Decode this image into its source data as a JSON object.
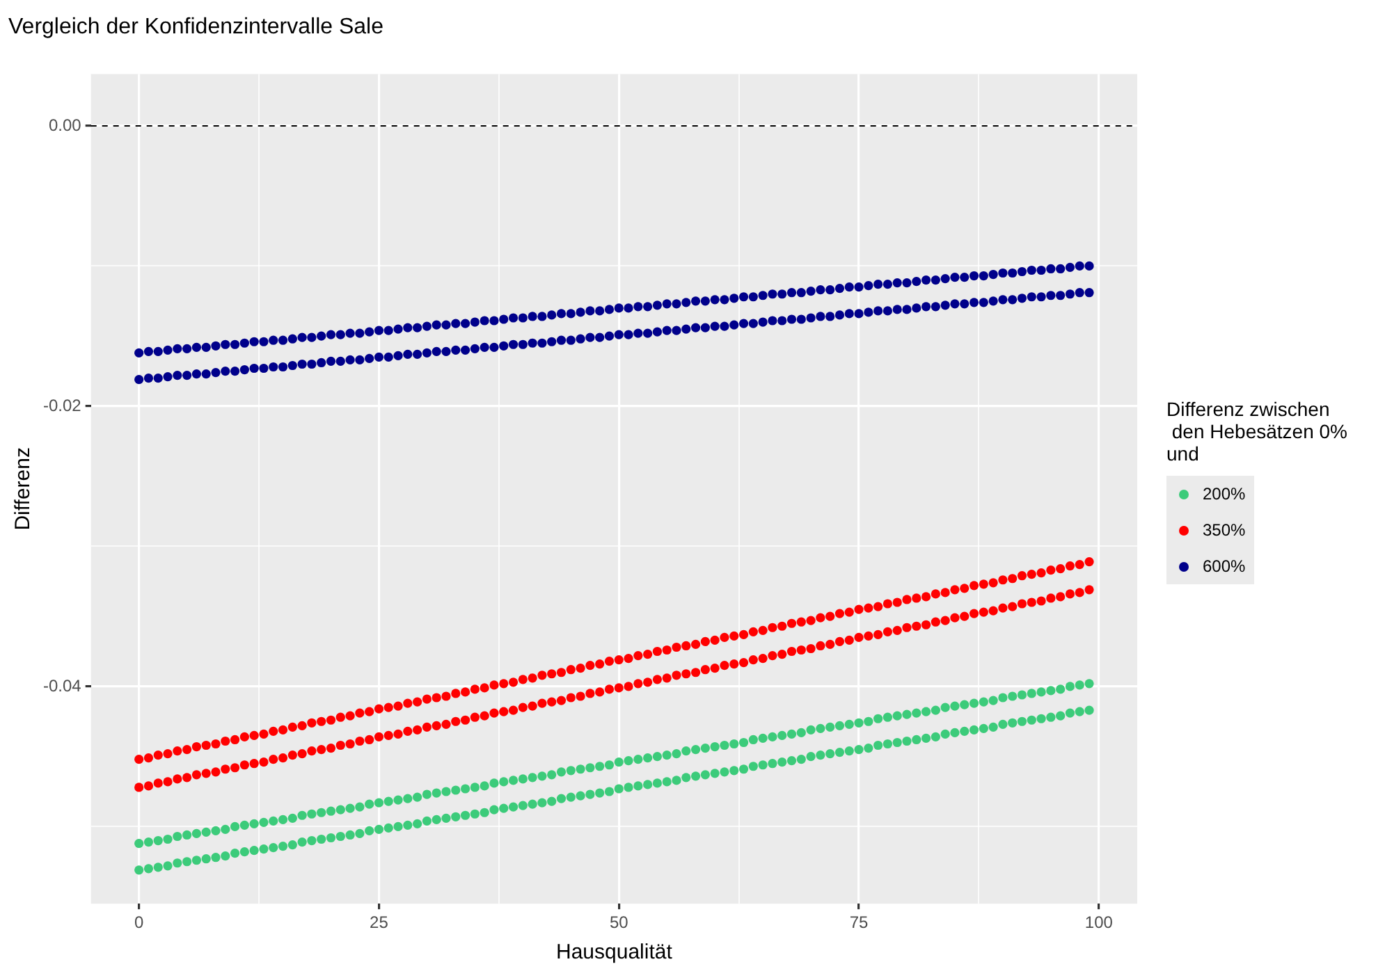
{
  "chart_data": {
    "type": "scatter",
    "title": "Vergleich der Konfidenzintervalle Sale",
    "xlabel": "Hausqualität",
    "ylabel": "Differenz",
    "legend_title": "Differenz zwischen\n den Hebesätzen 0%\nund",
    "legend": "right",
    "grid": true,
    "marker": "circle",
    "xlim": [
      -5,
      104
    ],
    "ylim": [
      -0.0555,
      0.0037
    ],
    "xticks": [
      0,
      {
        "value": 12.5,
        "label": null
      },
      25,
      {
        "value": 37.5,
        "label": null
      },
      50,
      {
        "value": 62.5,
        "label": null
      },
      75,
      {
        "value": 87.5,
        "label": null
      },
      100
    ],
    "yticks": [
      {
        "value": -0.05,
        "label": null
      },
      {
        "value": -0.04,
        "label": "-0.04"
      },
      {
        "value": -0.03,
        "label": null
      },
      {
        "value": -0.02,
        "label": "-0.02"
      },
      {
        "value": -0.01,
        "label": null
      },
      {
        "value": 0,
        "label": "0.00"
      }
    ],
    "ref_lines": [
      {
        "axis": "y",
        "value": 0,
        "color": "#000000",
        "line_style": "dashed"
      }
    ],
    "x": [
      0,
      1,
      2,
      3,
      4,
      5,
      6,
      7,
      8,
      9,
      10,
      11,
      12,
      13,
      14,
      15,
      16,
      17,
      18,
      19,
      20,
      21,
      22,
      23,
      24,
      25,
      26,
      27,
      28,
      29,
      30,
      31,
      32,
      33,
      34,
      35,
      36,
      37,
      38,
      39,
      40,
      41,
      42,
      43,
      44,
      45,
      46,
      47,
      48,
      49,
      50,
      51,
      52,
      53,
      54,
      55,
      56,
      57,
      58,
      59,
      60,
      61,
      62,
      63,
      64,
      65,
      66,
      67,
      68,
      69,
      70,
      71,
      72,
      73,
      74,
      75,
      76,
      77,
      78,
      79,
      80,
      81,
      82,
      83,
      84,
      85,
      86,
      87,
      88,
      89,
      90,
      91,
      92,
      93,
      94,
      95,
      96,
      97,
      98,
      99,
      0,
      1,
      2,
      3,
      4,
      5,
      6,
      7,
      8,
      9,
      10,
      11,
      12,
      13,
      14,
      15,
      16,
      17,
      18,
      19,
      20,
      21,
      22,
      23,
      24,
      25,
      26,
      27,
      28,
      29,
      30,
      31,
      32,
      33,
      34,
      35,
      36,
      37,
      38,
      39,
      40,
      41,
      42,
      43,
      44,
      45,
      46,
      47,
      48,
      49,
      50,
      51,
      52,
      53,
      54,
      55,
      56,
      57,
      58,
      59,
      60,
      61,
      62,
      63,
      64,
      65,
      66,
      67,
      68,
      69,
      70,
      71,
      72,
      73,
      74,
      75,
      76,
      77,
      78,
      79,
      80,
      81,
      82,
      83,
      84,
      85,
      86,
      87,
      88,
      89,
      90,
      91,
      92,
      93,
      94,
      95,
      96,
      97,
      98,
      99
    ],
    "series": [
      {
        "name": "200%",
        "color": "#3ccb7a",
        "values": [
          -0.0512,
          -0.0511,
          -0.051,
          -0.0509,
          -0.0507,
          -0.0506,
          -0.0505,
          -0.0504,
          -0.0503,
          -0.0502,
          -0.05,
          -0.0499,
          -0.0498,
          -0.0497,
          -0.0496,
          -0.0495,
          -0.0494,
          -0.0492,
          -0.0491,
          -0.049,
          -0.0489,
          -0.0488,
          -0.0487,
          -0.0486,
          -0.0484,
          -0.0483,
          -0.0482,
          -0.0481,
          -0.048,
          -0.0479,
          -0.0477,
          -0.0476,
          -0.0475,
          -0.0474,
          -0.0473,
          -0.0472,
          -0.0471,
          -0.0469,
          -0.0468,
          -0.0467,
          -0.0466,
          -0.0465,
          -0.0464,
          -0.0463,
          -0.0461,
          -0.046,
          -0.0459,
          -0.0458,
          -0.0457,
          -0.0456,
          -0.0454,
          -0.0453,
          -0.0452,
          -0.0451,
          -0.045,
          -0.0449,
          -0.0448,
          -0.0446,
          -0.0445,
          -0.0444,
          -0.0443,
          -0.0442,
          -0.0441,
          -0.044,
          -0.0438,
          -0.0437,
          -0.0436,
          -0.0435,
          -0.0434,
          -0.0433,
          -0.0431,
          -0.043,
          -0.0429,
          -0.0428,
          -0.0427,
          -0.0426,
          -0.0425,
          -0.0423,
          -0.0422,
          -0.0421,
          -0.042,
          -0.0419,
          -0.0418,
          -0.0417,
          -0.0415,
          -0.0414,
          -0.0413,
          -0.0412,
          -0.0411,
          -0.041,
          -0.0408,
          -0.0407,
          -0.0406,
          -0.0405,
          -0.0404,
          -0.0403,
          -0.0402,
          -0.04,
          -0.0399,
          -0.0398,
          -0.0531,
          -0.053,
          -0.0529,
          -0.0528,
          -0.0526,
          -0.0525,
          -0.0524,
          -0.0523,
          -0.0522,
          -0.0521,
          -0.0519,
          -0.0518,
          -0.0517,
          -0.0516,
          -0.0515,
          -0.0514,
          -0.0513,
          -0.0511,
          -0.051,
          -0.0509,
          -0.0508,
          -0.0507,
          -0.0506,
          -0.0505,
          -0.0503,
          -0.0502,
          -0.0501,
          -0.05,
          -0.0499,
          -0.0498,
          -0.0496,
          -0.0495,
          -0.0494,
          -0.0493,
          -0.0492,
          -0.0491,
          -0.049,
          -0.0488,
          -0.0487,
          -0.0486,
          -0.0485,
          -0.0484,
          -0.0483,
          -0.0482,
          -0.048,
          -0.0479,
          -0.0478,
          -0.0477,
          -0.0476,
          -0.0475,
          -0.0473,
          -0.0472,
          -0.0471,
          -0.047,
          -0.0469,
          -0.0468,
          -0.0467,
          -0.0465,
          -0.0464,
          -0.0463,
          -0.0462,
          -0.0461,
          -0.046,
          -0.0459,
          -0.0457,
          -0.0456,
          -0.0455,
          -0.0454,
          -0.0453,
          -0.0452,
          -0.045,
          -0.0449,
          -0.0448,
          -0.0447,
          -0.0446,
          -0.0445,
          -0.0444,
          -0.0442,
          -0.0441,
          -0.044,
          -0.0439,
          -0.0438,
          -0.0437,
          -0.0436,
          -0.0434,
          -0.0433,
          -0.0432,
          -0.0431,
          -0.043,
          -0.0429,
          -0.0427,
          -0.0426,
          -0.0425,
          -0.0424,
          -0.0423,
          -0.0422,
          -0.0421,
          -0.0419,
          -0.0418,
          -0.0417
        ]
      },
      {
        "name": "350%",
        "color": "#ff0000",
        "values": [
          -0.0452,
          -0.0451,
          -0.0449,
          -0.0448,
          -0.0446,
          -0.0445,
          -0.0443,
          -0.0442,
          -0.0441,
          -0.0439,
          -0.0438,
          -0.0436,
          -0.0435,
          -0.0434,
          -0.0432,
          -0.0431,
          -0.0429,
          -0.0428,
          -0.0426,
          -0.0425,
          -0.0424,
          -0.0422,
          -0.0421,
          -0.0419,
          -0.0418,
          -0.0416,
          -0.0415,
          -0.0414,
          -0.0412,
          -0.0411,
          -0.0409,
          -0.0408,
          -0.0407,
          -0.0405,
          -0.0404,
          -0.0402,
          -0.0401,
          -0.0399,
          -0.0398,
          -0.0397,
          -0.0395,
          -0.0394,
          -0.0392,
          -0.0391,
          -0.039,
          -0.0388,
          -0.0387,
          -0.0385,
          -0.0384,
          -0.0382,
          -0.0381,
          -0.038,
          -0.0378,
          -0.0377,
          -0.0375,
          -0.0374,
          -0.0372,
          -0.0371,
          -0.037,
          -0.0368,
          -0.0367,
          -0.0365,
          -0.0364,
          -0.0363,
          -0.0361,
          -0.036,
          -0.0358,
          -0.0357,
          -0.0355,
          -0.0354,
          -0.0353,
          -0.0351,
          -0.035,
          -0.0348,
          -0.0347,
          -0.0345,
          -0.0344,
          -0.0343,
          -0.0341,
          -0.034,
          -0.0338,
          -0.0337,
          -0.0336,
          -0.0334,
          -0.0333,
          -0.0331,
          -0.033,
          -0.0328,
          -0.0327,
          -0.0326,
          -0.0324,
          -0.0323,
          -0.0321,
          -0.032,
          -0.0319,
          -0.0317,
          -0.0316,
          -0.0314,
          -0.0313,
          -0.0311,
          -0.0472,
          -0.0471,
          -0.0469,
          -0.0468,
          -0.0466,
          -0.0465,
          -0.0463,
          -0.0462,
          -0.0461,
          -0.0459,
          -0.0458,
          -0.0456,
          -0.0455,
          -0.0454,
          -0.0452,
          -0.0451,
          -0.0449,
          -0.0448,
          -0.0446,
          -0.0445,
          -0.0444,
          -0.0442,
          -0.0441,
          -0.0439,
          -0.0438,
          -0.0436,
          -0.0435,
          -0.0434,
          -0.0432,
          -0.0431,
          -0.0429,
          -0.0428,
          -0.0427,
          -0.0425,
          -0.0424,
          -0.0422,
          -0.0421,
          -0.0419,
          -0.0418,
          -0.0417,
          -0.0415,
          -0.0414,
          -0.0412,
          -0.0411,
          -0.041,
          -0.0408,
          -0.0407,
          -0.0405,
          -0.0404,
          -0.0402,
          -0.0401,
          -0.04,
          -0.0398,
          -0.0397,
          -0.0395,
          -0.0394,
          -0.0392,
          -0.0391,
          -0.039,
          -0.0388,
          -0.0387,
          -0.0385,
          -0.0384,
          -0.0383,
          -0.0381,
          -0.038,
          -0.0378,
          -0.0377,
          -0.0375,
          -0.0374,
          -0.0373,
          -0.0371,
          -0.037,
          -0.0368,
          -0.0367,
          -0.0365,
          -0.0364,
          -0.0363,
          -0.0361,
          -0.036,
          -0.0358,
          -0.0357,
          -0.0356,
          -0.0354,
          -0.0353,
          -0.0351,
          -0.035,
          -0.0348,
          -0.0347,
          -0.0346,
          -0.0344,
          -0.0343,
          -0.0341,
          -0.034,
          -0.0339,
          -0.0337,
          -0.0336,
          -0.0334,
          -0.0333,
          -0.0331
        ]
      },
      {
        "name": "600%",
        "color": "#00008b",
        "values": [
          -0.0162,
          -0.0161,
          -0.0161,
          -0.016,
          -0.0159,
          -0.0159,
          -0.0158,
          -0.0158,
          -0.0157,
          -0.0156,
          -0.0156,
          -0.0155,
          -0.0154,
          -0.0154,
          -0.0153,
          -0.0153,
          -0.0152,
          -0.0151,
          -0.0151,
          -0.015,
          -0.0149,
          -0.0149,
          -0.0148,
          -0.0148,
          -0.0147,
          -0.0146,
          -0.0146,
          -0.0145,
          -0.0144,
          -0.0144,
          -0.0143,
          -0.0142,
          -0.0142,
          -0.0141,
          -0.0141,
          -0.014,
          -0.0139,
          -0.0139,
          -0.0138,
          -0.0137,
          -0.0137,
          -0.0136,
          -0.0136,
          -0.0135,
          -0.0134,
          -0.0134,
          -0.0133,
          -0.0132,
          -0.0132,
          -0.0131,
          -0.013,
          -0.013,
          -0.0129,
          -0.0129,
          -0.0128,
          -0.0127,
          -0.0127,
          -0.0126,
          -0.0125,
          -0.0125,
          -0.0124,
          -0.0124,
          -0.0123,
          -0.0122,
          -0.0122,
          -0.0121,
          -0.012,
          -0.012,
          -0.0119,
          -0.0119,
          -0.0118,
          -0.0117,
          -0.0117,
          -0.0116,
          -0.0115,
          -0.0115,
          -0.0114,
          -0.0113,
          -0.0113,
          -0.0112,
          -0.0112,
          -0.0111,
          -0.011,
          -0.011,
          -0.0109,
          -0.0108,
          -0.0108,
          -0.0107,
          -0.0107,
          -0.0106,
          -0.0105,
          -0.0105,
          -0.0104,
          -0.0103,
          -0.0103,
          -0.0102,
          -0.0102,
          -0.0101,
          -0.01,
          -0.01,
          -0.0181,
          -0.018,
          -0.018,
          -0.0179,
          -0.0178,
          -0.0178,
          -0.0177,
          -0.0177,
          -0.0176,
          -0.0175,
          -0.0175,
          -0.0174,
          -0.0173,
          -0.0173,
          -0.0172,
          -0.0172,
          -0.0171,
          -0.017,
          -0.017,
          -0.0169,
          -0.0168,
          -0.0168,
          -0.0167,
          -0.0167,
          -0.0166,
          -0.0165,
          -0.0165,
          -0.0164,
          -0.0163,
          -0.0163,
          -0.0162,
          -0.0161,
          -0.0161,
          -0.016,
          -0.016,
          -0.0159,
          -0.0158,
          -0.0158,
          -0.0157,
          -0.0156,
          -0.0156,
          -0.0155,
          -0.0155,
          -0.0154,
          -0.0153,
          -0.0153,
          -0.0152,
          -0.0151,
          -0.0151,
          -0.015,
          -0.0149,
          -0.0149,
          -0.0148,
          -0.0148,
          -0.0147,
          -0.0146,
          -0.0146,
          -0.0145,
          -0.0144,
          -0.0144,
          -0.0143,
          -0.0143,
          -0.0142,
          -0.0141,
          -0.0141,
          -0.014,
          -0.0139,
          -0.0139,
          -0.0138,
          -0.0138,
          -0.0137,
          -0.0136,
          -0.0136,
          -0.0135,
          -0.0134,
          -0.0134,
          -0.0133,
          -0.0132,
          -0.0132,
          -0.0131,
          -0.0131,
          -0.013,
          -0.0129,
          -0.0129,
          -0.0128,
          -0.0127,
          -0.0127,
          -0.0126,
          -0.0126,
          -0.0125,
          -0.0124,
          -0.0124,
          -0.0123,
          -0.0122,
          -0.0122,
          -0.0121,
          -0.0121,
          -0.012,
          -0.0119,
          -0.0119
        ]
      }
    ]
  }
}
